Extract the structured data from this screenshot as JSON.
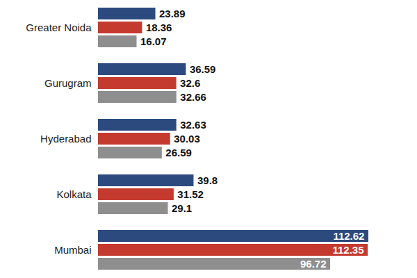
{
  "chart_data": {
    "type": "bar",
    "orientation": "horizontal",
    "categories": [
      "Greater Noida",
      "Gurugram",
      "Hyderabad",
      "Kolkata",
      "Mumbai"
    ],
    "series": [
      {
        "color": "#2c4a7e",
        "values": [
          23.89,
          36.59,
          32.63,
          39.8,
          112.62
        ]
      },
      {
        "color": "#c43a2f",
        "values": [
          18.36,
          32.6,
          30.03,
          31.52,
          112.35
        ]
      },
      {
        "color": "#8e8e8e",
        "values": [
          16.07,
          32.66,
          26.59,
          29.1,
          96.72
        ]
      }
    ],
    "xlim": [
      0,
      130
    ],
    "data_labels": true,
    "tick_labels": false,
    "grid": false
  }
}
